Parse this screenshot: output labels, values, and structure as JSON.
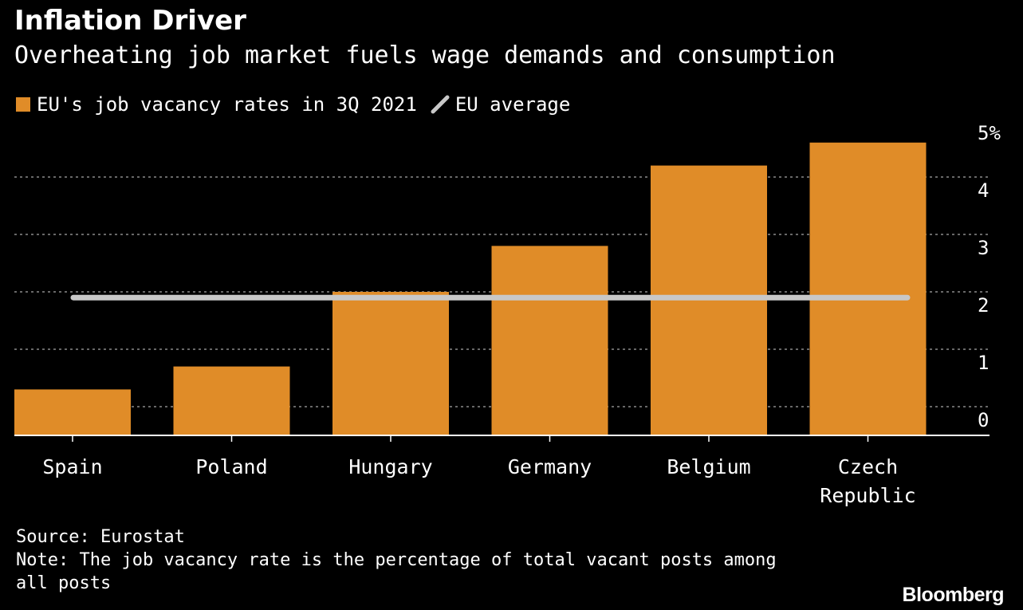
{
  "header": {
    "title": "Inflation Driver",
    "subtitle": "Overheating job market fuels wage demands and consumption"
  },
  "legend": {
    "bar_label": "EU's job vacancy rates in 3Q 2021",
    "line_label": "EU average"
  },
  "colors": {
    "background": "#000000",
    "bar": "#e08c28",
    "average_line": "#c8c8c8",
    "grid": "#8a8a8a",
    "axis": "#ffffff"
  },
  "chart_data": {
    "type": "bar",
    "title": "Inflation Driver",
    "subtitle": "Overheating job market fuels wage demands and consumption",
    "categories": [
      "Spain",
      "Poland",
      "Hungary",
      "Germany",
      "Belgium",
      "Czech Republic"
    ],
    "category_lines": [
      [
        "Spain"
      ],
      [
        "Poland"
      ],
      [
        "Hungary"
      ],
      [
        "Germany"
      ],
      [
        "Belgium"
      ],
      [
        "Czech",
        "Republic"
      ]
    ],
    "series": [
      {
        "name": "EU's job vacancy rates in 3Q 2021",
        "values": [
          0.8,
          1.2,
          2.5,
          3.3,
          4.7,
          5.1
        ]
      }
    ],
    "reference_line": {
      "name": "EU average",
      "value": 2.4
    },
    "ylim": [
      0,
      5
    ],
    "yticks": [
      0,
      1,
      2,
      3,
      4,
      5
    ],
    "ytick_labels": [
      "0",
      "1",
      "2",
      "3",
      "4",
      "5%"
    ],
    "ytick_grid": [
      0.5,
      1.5,
      2.5,
      3.5,
      4.5
    ],
    "y_axis_position": "right",
    "grid": true,
    "legend_position": "top-left",
    "xlabel": "",
    "ylabel": ""
  },
  "footer": {
    "source": "Source: Eurostat",
    "note": "Note: The job vacancy rate is the percentage of total vacant posts among all posts"
  },
  "brand": "Bloomberg"
}
